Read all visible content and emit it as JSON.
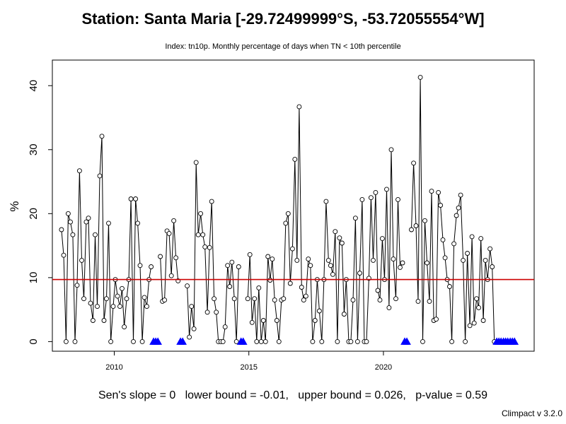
{
  "header": {
    "title": "Station: Santa Maria [-29.72499999°S, -53.72055554°W]",
    "subtitle": "Index: tn10p. Monthly percentage of days when TN < 10th percentile"
  },
  "footer": {
    "stats": "Sen's slope = 0   lower bound = -0.01,   upper bound = 0.026,   p-value = 0.59",
    "credit": "Climpact v 3.2.0"
  },
  "chart_data": {
    "type": "line",
    "title": "",
    "xlabel": "",
    "ylabel": "%",
    "xlim": [
      2007.7,
      2025.6
    ],
    "ylim": [
      -1.5,
      44
    ],
    "xticks": [
      2010,
      2015,
      2020
    ],
    "yticks": [
      0,
      10,
      20,
      30,
      40
    ],
    "reference_line": {
      "y": 9.7,
      "color": "#cc0000"
    },
    "colors": {
      "line": "#000000",
      "missing_marker": "#0000ff"
    },
    "missing_marker_y": 0,
    "series": [
      {
        "x": [
          2008.04,
          2008.12,
          2008.21,
          2008.29,
          2008.37,
          2008.46,
          2008.54,
          2008.62,
          2008.71,
          2008.79,
          2008.87,
          2008.96,
          2009.04,
          2009.12,
          2009.21,
          2009.29,
          2009.37,
          2009.46,
          2009.54,
          2009.62,
          2009.71,
          2009.79,
          2009.87,
          2009.96,
          2010.04,
          2010.12,
          2010.21,
          2010.29,
          2010.37,
          2010.46,
          2010.54,
          2010.62,
          2010.71,
          2010.79,
          2010.87,
          2010.96,
          2011.04,
          2011.12,
          2011.21,
          2011.29,
          2011.37,
          2011.46,
          2011.54,
          2011.62,
          2011.71,
          2011.79,
          2011.87,
          2011.96,
          2012.04,
          2012.12,
          2012.21,
          2012.29,
          2012.37,
          2012.46,
          2012.54,
          2012.62,
          2012.71,
          2012.79,
          2012.87,
          2012.96,
          2013.04,
          2013.12,
          2013.21,
          2013.29,
          2013.37,
          2013.46,
          2013.54,
          2013.62,
          2013.71,
          2013.79,
          2013.87,
          2013.96,
          2014.04,
          2014.12,
          2014.21,
          2014.29,
          2014.37,
          2014.46,
          2014.54,
          2014.62,
          2014.71,
          2014.79,
          2014.87,
          2014.96,
          2015.04,
          2015.12,
          2015.21,
          2015.29,
          2015.37,
          2015.46,
          2015.54,
          2015.62,
          2015.71,
          2015.79,
          2015.87,
          2015.96,
          2016.04,
          2016.12,
          2016.21,
          2016.29,
          2016.37,
          2016.46,
          2016.54,
          2016.62,
          2016.71,
          2016.79,
          2016.87,
          2016.96,
          2017.04,
          2017.12,
          2017.21,
          2017.29,
          2017.37,
          2017.46,
          2017.54,
          2017.62,
          2017.71,
          2017.79,
          2017.87,
          2017.96,
          2018.04,
          2018.12,
          2018.21,
          2018.29,
          2018.37,
          2018.46,
          2018.54,
          2018.62,
          2018.71,
          2018.79,
          2018.87,
          2018.96,
          2019.04,
          2019.12,
          2019.21,
          2019.29,
          2019.37,
          2019.46,
          2019.54,
          2019.62,
          2019.71,
          2019.79,
          2019.87,
          2019.96,
          2020.04,
          2020.12,
          2020.21,
          2020.29,
          2020.37,
          2020.46,
          2020.54,
          2020.62,
          2020.71,
          2020.79,
          2020.87,
          2020.96,
          2021.04,
          2021.12,
          2021.21,
          2021.29,
          2021.37,
          2021.46,
          2021.54,
          2021.62,
          2021.71,
          2021.79,
          2021.87,
          2021.96,
          2022.04,
          2022.12,
          2022.21,
          2022.29,
          2022.37,
          2022.46,
          2022.54,
          2022.62,
          2022.71,
          2022.79,
          2022.87,
          2022.96,
          2023.04,
          2023.12,
          2023.21,
          2023.29,
          2023.37,
          2023.46,
          2023.54,
          2023.62,
          2023.71,
          2023.79,
          2023.87,
          2023.96,
          2024.04,
          2024.12
        ],
        "values": [
          17.5,
          13.5,
          0,
          20,
          18.7,
          16.7,
          0,
          8.8,
          26.7,
          12.7,
          6.7,
          18.7,
          19.3,
          6,
          3.3,
          16.7,
          5.5,
          25.9,
          32.1,
          3.3,
          6.7,
          18.5,
          0,
          5.5,
          9.7,
          7.1,
          5.5,
          8.3,
          2.3,
          6.7,
          9.7,
          22.3,
          0,
          22.3,
          18.5,
          11.9,
          0,
          6.9,
          5.5,
          9.7,
          11.7,
          null,
          null,
          null,
          13.3,
          6.3,
          6.5,
          17.3,
          16.9,
          10.3,
          18.9,
          13.1,
          9.5,
          null,
          null,
          null,
          8.7,
          0.7,
          5.5,
          2,
          28,
          16.7,
          20,
          16.7,
          14.8,
          4.6,
          14.7,
          21.9,
          6.7,
          4.6,
          0,
          0,
          0,
          2.3,
          11.9,
          8.6,
          12.4,
          6.7,
          0,
          11.7,
          null,
          null,
          null,
          6.7,
          13.6,
          3,
          6.7,
          0,
          8.4,
          0,
          3.3,
          0,
          13.3,
          9.6,
          12.9,
          6.5,
          3.3,
          0,
          6.5,
          6.7,
          18.5,
          20,
          9.1,
          14.5,
          28.5,
          12.7,
          36.7,
          8.5,
          6.5,
          7.1,
          12.9,
          11.9,
          0,
          3.3,
          9.7,
          4.8,
          0,
          9.7,
          21.9,
          12.7,
          11.9,
          10.5,
          17.2,
          0,
          16.2,
          15.4,
          4.3,
          9.7,
          0,
          0,
          6.5,
          19.3,
          0,
          10.7,
          22.2,
          0,
          0,
          9.9,
          22.5,
          12.7,
          23.3,
          8,
          6.5,
          16.1,
          9.7,
          23.8,
          5.3,
          30,
          12.9,
          6.7,
          22.2,
          11.6,
          12.3,
          null,
          null,
          null,
          17.5,
          27.9,
          18.1,
          6.3,
          41.3,
          0,
          18.9,
          12.3,
          6.3,
          23.5,
          3.3,
          3.5,
          23.3,
          21.3,
          15.9,
          13.1,
          9.7,
          8.6,
          0,
          15.3,
          19.7,
          20.9,
          22.9,
          12.7,
          0,
          13.8,
          2.5,
          16.4,
          2.9,
          6.7,
          5.3,
          16.1,
          3.3,
          12.7,
          9.7,
          14.5,
          11.7,
          0
        ]
      }
    ],
    "missing_x": [
      2011.46,
      2011.54,
      2011.62,
      2012.46,
      2012.54,
      2014.71,
      2014.79,
      2020.79,
      2020.87,
      2024.21,
      2024.29,
      2024.37,
      2024.46,
      2024.54,
      2024.62,
      2024.71,
      2024.79,
      2024.87
    ]
  }
}
